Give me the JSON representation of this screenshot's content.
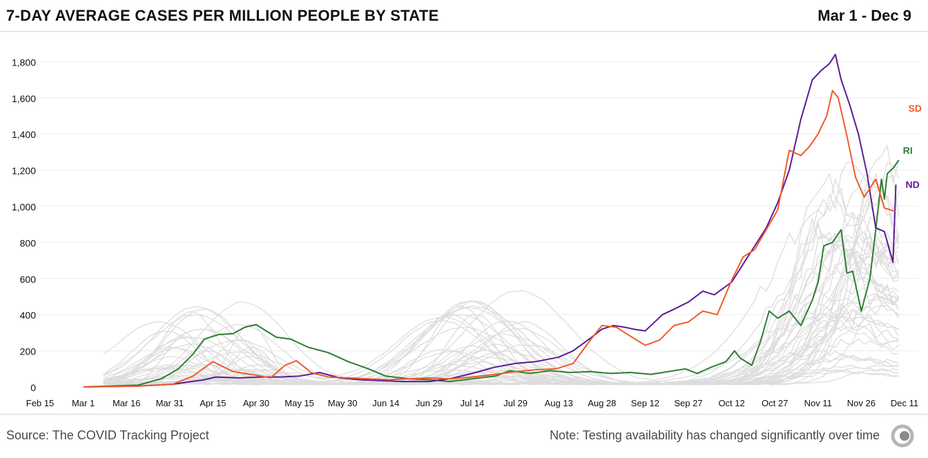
{
  "header": {
    "title": "7-DAY AVERAGE CASES PER MILLION PEOPLE BY STATE",
    "date_range": "Mar 1 - Dec 9"
  },
  "footer": {
    "source": "Source: The COVID Tracking Project",
    "note": "Note: Testing availability has changed significantly over time",
    "logo_icon": "covid-tracking-project-logo-icon"
  },
  "colors": {
    "background_lines": "#dddddd",
    "RI": "#2e7d32",
    "ND": "#5b1a96",
    "SD": "#f05a28",
    "gridline": "#ececec"
  },
  "chart_data": {
    "type": "line",
    "title": "7-DAY AVERAGE CASES PER MILLION PEOPLE BY STATE",
    "xlabel": "",
    "ylabel": "",
    "ylim": [
      0,
      1900
    ],
    "xlim": [
      "2020-02-15",
      "2020-12-11"
    ],
    "yticks": [
      0,
      200,
      400,
      600,
      800,
      1000,
      1200,
      1400,
      1600,
      1800
    ],
    "ytick_labels": [
      "0",
      "200",
      "400",
      "600",
      "800",
      "1,000",
      "1,200",
      "1,400",
      "1,600",
      "1,800"
    ],
    "xticks": [
      "2020-02-15",
      "2020-03-01",
      "2020-03-16",
      "2020-03-31",
      "2020-04-15",
      "2020-04-30",
      "2020-05-15",
      "2020-05-30",
      "2020-06-14",
      "2020-06-29",
      "2020-07-14",
      "2020-07-29",
      "2020-08-13",
      "2020-08-28",
      "2020-09-12",
      "2020-09-27",
      "2020-10-12",
      "2020-10-27",
      "2020-11-11",
      "2020-11-26",
      "2020-12-11"
    ],
    "xtick_labels": [
      "Feb 15",
      "Mar 1",
      "Mar 16",
      "Mar 31",
      "Apr 15",
      "Apr 30",
      "May 15",
      "May 30",
      "Jun 14",
      "Jun 29",
      "Jul 14",
      "Jul 29",
      "Aug 13",
      "Aug 28",
      "Sep 12",
      "Sep 27",
      "Oct 12",
      "Oct 27",
      "Nov 11",
      "Nov 26",
      "Dec 11"
    ],
    "grid": true,
    "legend": "direct-labels-right",
    "highlighted_series": [
      {
        "name": "RI",
        "color": "#2e7d32",
        "points": [
          [
            "2020-03-01",
            0
          ],
          [
            "2020-03-20",
            10
          ],
          [
            "2020-03-28",
            45
          ],
          [
            "2020-04-03",
            100
          ],
          [
            "2020-04-08",
            180
          ],
          [
            "2020-04-12",
            265
          ],
          [
            "2020-04-17",
            290
          ],
          [
            "2020-04-22",
            295
          ],
          [
            "2020-04-26",
            330
          ],
          [
            "2020-04-30",
            345
          ],
          [
            "2020-05-04",
            305
          ],
          [
            "2020-05-07",
            275
          ],
          [
            "2020-05-12",
            265
          ],
          [
            "2020-05-18",
            220
          ],
          [
            "2020-05-25",
            190
          ],
          [
            "2020-06-01",
            140
          ],
          [
            "2020-06-08",
            100
          ],
          [
            "2020-06-14",
            60
          ],
          [
            "2020-06-22",
            45
          ],
          [
            "2020-06-29",
            40
          ],
          [
            "2020-07-06",
            30
          ],
          [
            "2020-07-14",
            45
          ],
          [
            "2020-07-22",
            60
          ],
          [
            "2020-07-27",
            90
          ],
          [
            "2020-08-03",
            75
          ],
          [
            "2020-08-10",
            90
          ],
          [
            "2020-08-17",
            80
          ],
          [
            "2020-08-24",
            85
          ],
          [
            "2020-08-31",
            75
          ],
          [
            "2020-09-07",
            80
          ],
          [
            "2020-09-14",
            70
          ],
          [
            "2020-09-20",
            85
          ],
          [
            "2020-09-26",
            100
          ],
          [
            "2020-09-30",
            75
          ],
          [
            "2020-10-05",
            110
          ],
          [
            "2020-10-10",
            140
          ],
          [
            "2020-10-13",
            200
          ],
          [
            "2020-10-15",
            160
          ],
          [
            "2020-10-19",
            120
          ],
          [
            "2020-10-22",
            250
          ],
          [
            "2020-10-25",
            420
          ],
          [
            "2020-10-28",
            380
          ],
          [
            "2020-11-01",
            420
          ],
          [
            "2020-11-05",
            340
          ],
          [
            "2020-11-09",
            480
          ],
          [
            "2020-11-11",
            580
          ],
          [
            "2020-11-13",
            780
          ],
          [
            "2020-11-16",
            800
          ],
          [
            "2020-11-19",
            870
          ],
          [
            "2020-11-21",
            630
          ],
          [
            "2020-11-23",
            640
          ],
          [
            "2020-11-26",
            420
          ],
          [
            "2020-11-29",
            600
          ],
          [
            "2020-12-01",
            870
          ],
          [
            "2020-12-03",
            1150
          ],
          [
            "2020-12-04",
            1040
          ],
          [
            "2020-12-05",
            1180
          ],
          [
            "2020-12-07",
            1210
          ],
          [
            "2020-12-09",
            1255
          ]
        ]
      },
      {
        "name": "ND",
        "color": "#5b1a96",
        "points": [
          [
            "2020-03-01",
            0
          ],
          [
            "2020-03-20",
            5
          ],
          [
            "2020-04-01",
            15
          ],
          [
            "2020-04-12",
            40
          ],
          [
            "2020-04-16",
            55
          ],
          [
            "2020-04-24",
            50
          ],
          [
            "2020-05-01",
            55
          ],
          [
            "2020-05-08",
            55
          ],
          [
            "2020-05-15",
            60
          ],
          [
            "2020-05-22",
            80
          ],
          [
            "2020-05-29",
            50
          ],
          [
            "2020-06-05",
            40
          ],
          [
            "2020-06-12",
            35
          ],
          [
            "2020-06-20",
            30
          ],
          [
            "2020-06-29",
            30
          ],
          [
            "2020-07-06",
            45
          ],
          [
            "2020-07-14",
            75
          ],
          [
            "2020-07-22",
            110
          ],
          [
            "2020-07-29",
            130
          ],
          [
            "2020-08-05",
            140
          ],
          [
            "2020-08-13",
            165
          ],
          [
            "2020-08-18",
            200
          ],
          [
            "2020-08-24",
            270
          ],
          [
            "2020-08-28",
            320
          ],
          [
            "2020-09-01",
            340
          ],
          [
            "2020-09-05",
            330
          ],
          [
            "2020-09-08",
            320
          ],
          [
            "2020-09-12",
            310
          ],
          [
            "2020-09-18",
            400
          ],
          [
            "2020-09-22",
            430
          ],
          [
            "2020-09-27",
            470
          ],
          [
            "2020-10-02",
            530
          ],
          [
            "2020-10-06",
            510
          ],
          [
            "2020-10-12",
            580
          ],
          [
            "2020-10-16",
            680
          ],
          [
            "2020-10-20",
            780
          ],
          [
            "2020-10-24",
            880
          ],
          [
            "2020-10-28",
            1020
          ],
          [
            "2020-11-01",
            1200
          ],
          [
            "2020-11-05",
            1480
          ],
          [
            "2020-11-09",
            1700
          ],
          [
            "2020-11-12",
            1750
          ],
          [
            "2020-11-15",
            1790
          ],
          [
            "2020-11-17",
            1840
          ],
          [
            "2020-11-19",
            1700
          ],
          [
            "2020-11-22",
            1560
          ],
          [
            "2020-11-25",
            1400
          ],
          [
            "2020-11-28",
            1180
          ],
          [
            "2020-12-01",
            880
          ],
          [
            "2020-12-04",
            860
          ],
          [
            "2020-12-07",
            690
          ],
          [
            "2020-12-08",
            1120
          ]
        ]
      },
      {
        "name": "SD",
        "color": "#f05a28",
        "points": [
          [
            "2020-03-01",
            0
          ],
          [
            "2020-03-20",
            5
          ],
          [
            "2020-04-01",
            15
          ],
          [
            "2020-04-08",
            60
          ],
          [
            "2020-04-15",
            140
          ],
          [
            "2020-04-22",
            85
          ],
          [
            "2020-04-30",
            65
          ],
          [
            "2020-05-05",
            50
          ],
          [
            "2020-05-10",
            120
          ],
          [
            "2020-05-14",
            145
          ],
          [
            "2020-05-19",
            80
          ],
          [
            "2020-05-25",
            55
          ],
          [
            "2020-06-01",
            50
          ],
          [
            "2020-06-08",
            45
          ],
          [
            "2020-06-15",
            40
          ],
          [
            "2020-06-22",
            45
          ],
          [
            "2020-06-29",
            50
          ],
          [
            "2020-07-06",
            45
          ],
          [
            "2020-07-14",
            55
          ],
          [
            "2020-07-22",
            70
          ],
          [
            "2020-07-29",
            85
          ],
          [
            "2020-08-05",
            95
          ],
          [
            "2020-08-12",
            100
          ],
          [
            "2020-08-18",
            130
          ],
          [
            "2020-08-24",
            260
          ],
          [
            "2020-08-28",
            340
          ],
          [
            "2020-09-02",
            330
          ],
          [
            "2020-09-08",
            270
          ],
          [
            "2020-09-12",
            230
          ],
          [
            "2020-09-17",
            260
          ],
          [
            "2020-09-22",
            340
          ],
          [
            "2020-09-27",
            360
          ],
          [
            "2020-10-02",
            420
          ],
          [
            "2020-10-07",
            400
          ],
          [
            "2020-10-12",
            590
          ],
          [
            "2020-10-16",
            720
          ],
          [
            "2020-10-20",
            760
          ],
          [
            "2020-10-24",
            870
          ],
          [
            "2020-10-28",
            980
          ],
          [
            "2020-11-01",
            1310
          ],
          [
            "2020-11-05",
            1280
          ],
          [
            "2020-11-08",
            1330
          ],
          [
            "2020-11-11",
            1400
          ],
          [
            "2020-11-14",
            1500
          ],
          [
            "2020-11-16",
            1640
          ],
          [
            "2020-11-18",
            1600
          ],
          [
            "2020-11-21",
            1390
          ],
          [
            "2020-11-24",
            1160
          ],
          [
            "2020-11-27",
            1050
          ],
          [
            "2020-12-01",
            1150
          ],
          [
            "2020-12-04",
            990
          ],
          [
            "2020-12-08",
            970
          ]
        ]
      }
    ],
    "series_labels": [
      {
        "name": "RI",
        "color": "#2e7d32"
      },
      {
        "name": "ND",
        "color": "#5b1a96"
      },
      {
        "name": "SD",
        "color": "#f05a28"
      }
    ]
  }
}
